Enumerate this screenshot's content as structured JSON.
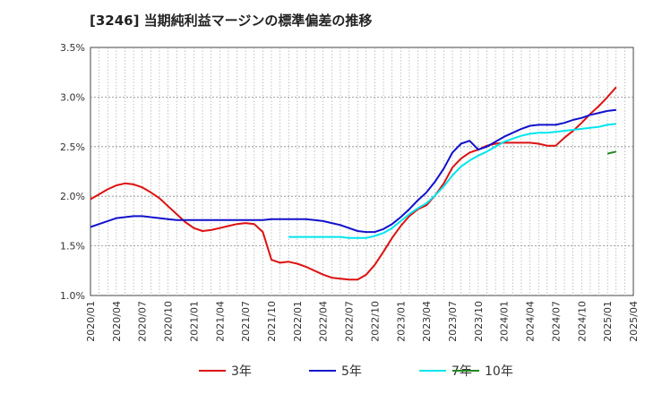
{
  "chart_data": {
    "type": "line",
    "title": "[3246]  当期純利益マージンの標準偏差の推移",
    "xlabel": "",
    "ylabel": "",
    "ylim": [
      1.0,
      3.5
    ],
    "yticks": [
      "1.0%",
      "1.5%",
      "2.0%",
      "2.5%",
      "3.0%",
      "3.5%"
    ],
    "ytick_values": [
      1.0,
      1.5,
      2.0,
      2.5,
      3.0,
      3.5
    ],
    "xlim": [
      "2020-01",
      "2025-04"
    ],
    "xticks": [
      "2020/01",
      "2020/04",
      "2020/07",
      "2020/10",
      "2021/01",
      "2021/04",
      "2021/07",
      "2021/10",
      "2022/01",
      "2022/04",
      "2022/07",
      "2022/10",
      "2023/01",
      "2023/04",
      "2023/07",
      "2023/10",
      "2024/01",
      "2024/04",
      "2024/07",
      "2024/10",
      "2025/01",
      "2025/04"
    ],
    "grid": true,
    "legend_position": "bottom",
    "series": [
      {
        "name": "3年",
        "color": "#dd1111",
        "points": [
          [
            "2020-01",
            1.97
          ],
          [
            "2020-02",
            2.02
          ],
          [
            "2020-03",
            2.07
          ],
          [
            "2020-04",
            2.11
          ],
          [
            "2020-05",
            2.13
          ],
          [
            "2020-06",
            2.12
          ],
          [
            "2020-07",
            2.09
          ],
          [
            "2020-08",
            2.04
          ],
          [
            "2020-09",
            1.98
          ],
          [
            "2020-10",
            1.9
          ],
          [
            "2020-11",
            1.82
          ],
          [
            "2020-12",
            1.74
          ],
          [
            "2021-01",
            1.68
          ],
          [
            "2021-02",
            1.65
          ],
          [
            "2021-03",
            1.66
          ],
          [
            "2021-04",
            1.68
          ],
          [
            "2021-05",
            1.7
          ],
          [
            "2021-06",
            1.72
          ],
          [
            "2021-07",
            1.73
          ],
          [
            "2021-08",
            1.72
          ],
          [
            "2021-09",
            1.64
          ],
          [
            "2021-10",
            1.36
          ],
          [
            "2021-11",
            1.33
          ],
          [
            "2021-12",
            1.34
          ],
          [
            "2022-01",
            1.32
          ],
          [
            "2022-02",
            1.29
          ],
          [
            "2022-03",
            1.25
          ],
          [
            "2022-04",
            1.21
          ],
          [
            "2022-05",
            1.18
          ],
          [
            "2022-06",
            1.17
          ],
          [
            "2022-07",
            1.16
          ],
          [
            "2022-08",
            1.16
          ],
          [
            "2022-09",
            1.21
          ],
          [
            "2022-10",
            1.31
          ],
          [
            "2022-11",
            1.44
          ],
          [
            "2022-12",
            1.58
          ],
          [
            "2023-01",
            1.7
          ],
          [
            "2023-02",
            1.8
          ],
          [
            "2023-03",
            1.87
          ],
          [
            "2023-04",
            1.91
          ],
          [
            "2023-05",
            2.01
          ],
          [
            "2023-06",
            2.13
          ],
          [
            "2023-07",
            2.29
          ],
          [
            "2023-08",
            2.38
          ],
          [
            "2023-09",
            2.44
          ],
          [
            "2023-10",
            2.47
          ],
          [
            "2023-11",
            2.51
          ],
          [
            "2023-12",
            2.53
          ],
          [
            "2024-01",
            2.54
          ],
          [
            "2024-02",
            2.54
          ],
          [
            "2024-03",
            2.54
          ],
          [
            "2024-04",
            2.54
          ],
          [
            "2024-05",
            2.53
          ],
          [
            "2024-06",
            2.51
          ],
          [
            "2024-07",
            2.51
          ],
          [
            "2024-08",
            2.59
          ],
          [
            "2024-09",
            2.66
          ],
          [
            "2024-10",
            2.74
          ],
          [
            "2024-11",
            2.83
          ],
          [
            "2024-12",
            2.91
          ],
          [
            "2025-01",
            3.0
          ],
          [
            "2025-02",
            3.1
          ]
        ]
      },
      {
        "name": "5年",
        "color": "#1111cc",
        "points": [
          [
            "2020-01",
            1.69
          ],
          [
            "2020-02",
            1.72
          ],
          [
            "2020-03",
            1.75
          ],
          [
            "2020-04",
            1.78
          ],
          [
            "2020-05",
            1.79
          ],
          [
            "2020-06",
            1.8
          ],
          [
            "2020-07",
            1.8
          ],
          [
            "2020-08",
            1.79
          ],
          [
            "2020-09",
            1.78
          ],
          [
            "2020-10",
            1.77
          ],
          [
            "2020-11",
            1.76
          ],
          [
            "2020-12",
            1.76
          ],
          [
            "2021-01",
            1.76
          ],
          [
            "2021-02",
            1.76
          ],
          [
            "2021-03",
            1.76
          ],
          [
            "2021-04",
            1.76
          ],
          [
            "2021-05",
            1.76
          ],
          [
            "2021-06",
            1.76
          ],
          [
            "2021-07",
            1.76
          ],
          [
            "2021-08",
            1.76
          ],
          [
            "2021-09",
            1.76
          ],
          [
            "2021-10",
            1.77
          ],
          [
            "2021-11",
            1.77
          ],
          [
            "2021-12",
            1.77
          ],
          [
            "2022-01",
            1.77
          ],
          [
            "2022-02",
            1.77
          ],
          [
            "2022-03",
            1.76
          ],
          [
            "2022-04",
            1.75
          ],
          [
            "2022-05",
            1.73
          ],
          [
            "2022-06",
            1.71
          ],
          [
            "2022-07",
            1.68
          ],
          [
            "2022-08",
            1.65
          ],
          [
            "2022-09",
            1.64
          ],
          [
            "2022-10",
            1.64
          ],
          [
            "2022-11",
            1.67
          ],
          [
            "2022-12",
            1.72
          ],
          [
            "2023-01",
            1.79
          ],
          [
            "2023-02",
            1.87
          ],
          [
            "2023-03",
            1.96
          ],
          [
            "2023-04",
            2.04
          ],
          [
            "2023-05",
            2.15
          ],
          [
            "2023-06",
            2.28
          ],
          [
            "2023-07",
            2.44
          ],
          [
            "2023-08",
            2.53
          ],
          [
            "2023-09",
            2.56
          ],
          [
            "2023-10",
            2.47
          ],
          [
            "2023-11",
            2.5
          ],
          [
            "2023-12",
            2.55
          ],
          [
            "2024-01",
            2.6
          ],
          [
            "2024-02",
            2.64
          ],
          [
            "2024-03",
            2.68
          ],
          [
            "2024-04",
            2.71
          ],
          [
            "2024-05",
            2.72
          ],
          [
            "2024-06",
            2.72
          ],
          [
            "2024-07",
            2.72
          ],
          [
            "2024-08",
            2.74
          ],
          [
            "2024-09",
            2.77
          ],
          [
            "2024-10",
            2.79
          ],
          [
            "2024-11",
            2.82
          ],
          [
            "2024-12",
            2.84
          ],
          [
            "2025-01",
            2.86
          ],
          [
            "2025-02",
            2.87
          ]
        ]
      },
      {
        "name": "7年",
        "color": "#00e5ee",
        "points": [
          [
            "2021-12",
            1.59
          ],
          [
            "2022-01",
            1.59
          ],
          [
            "2022-02",
            1.59
          ],
          [
            "2022-03",
            1.59
          ],
          [
            "2022-04",
            1.59
          ],
          [
            "2022-05",
            1.59
          ],
          [
            "2022-06",
            1.59
          ],
          [
            "2022-07",
            1.58
          ],
          [
            "2022-08",
            1.58
          ],
          [
            "2022-09",
            1.58
          ],
          [
            "2022-10",
            1.6
          ],
          [
            "2022-11",
            1.63
          ],
          [
            "2022-12",
            1.68
          ],
          [
            "2023-01",
            1.75
          ],
          [
            "2023-02",
            1.82
          ],
          [
            "2023-03",
            1.88
          ],
          [
            "2023-04",
            1.93
          ],
          [
            "2023-05",
            2.01
          ],
          [
            "2023-06",
            2.1
          ],
          [
            "2023-07",
            2.21
          ],
          [
            "2023-08",
            2.3
          ],
          [
            "2023-09",
            2.36
          ],
          [
            "2023-10",
            2.41
          ],
          [
            "2023-11",
            2.45
          ],
          [
            "2023-12",
            2.5
          ],
          [
            "2024-01",
            2.55
          ],
          [
            "2024-02",
            2.58
          ],
          [
            "2024-03",
            2.61
          ],
          [
            "2024-04",
            2.63
          ],
          [
            "2024-05",
            2.64
          ],
          [
            "2024-06",
            2.64
          ],
          [
            "2024-07",
            2.65
          ],
          [
            "2024-08",
            2.66
          ],
          [
            "2024-09",
            2.67
          ],
          [
            "2024-10",
            2.68
          ],
          [
            "2024-11",
            2.69
          ],
          [
            "2024-12",
            2.7
          ],
          [
            "2025-01",
            2.72
          ],
          [
            "2025-02",
            2.73
          ]
        ]
      },
      {
        "name": "10年",
        "color": "#228822",
        "points": [
          [
            "2025-01",
            2.43
          ],
          [
            "2025-02",
            2.45
          ]
        ]
      }
    ]
  }
}
